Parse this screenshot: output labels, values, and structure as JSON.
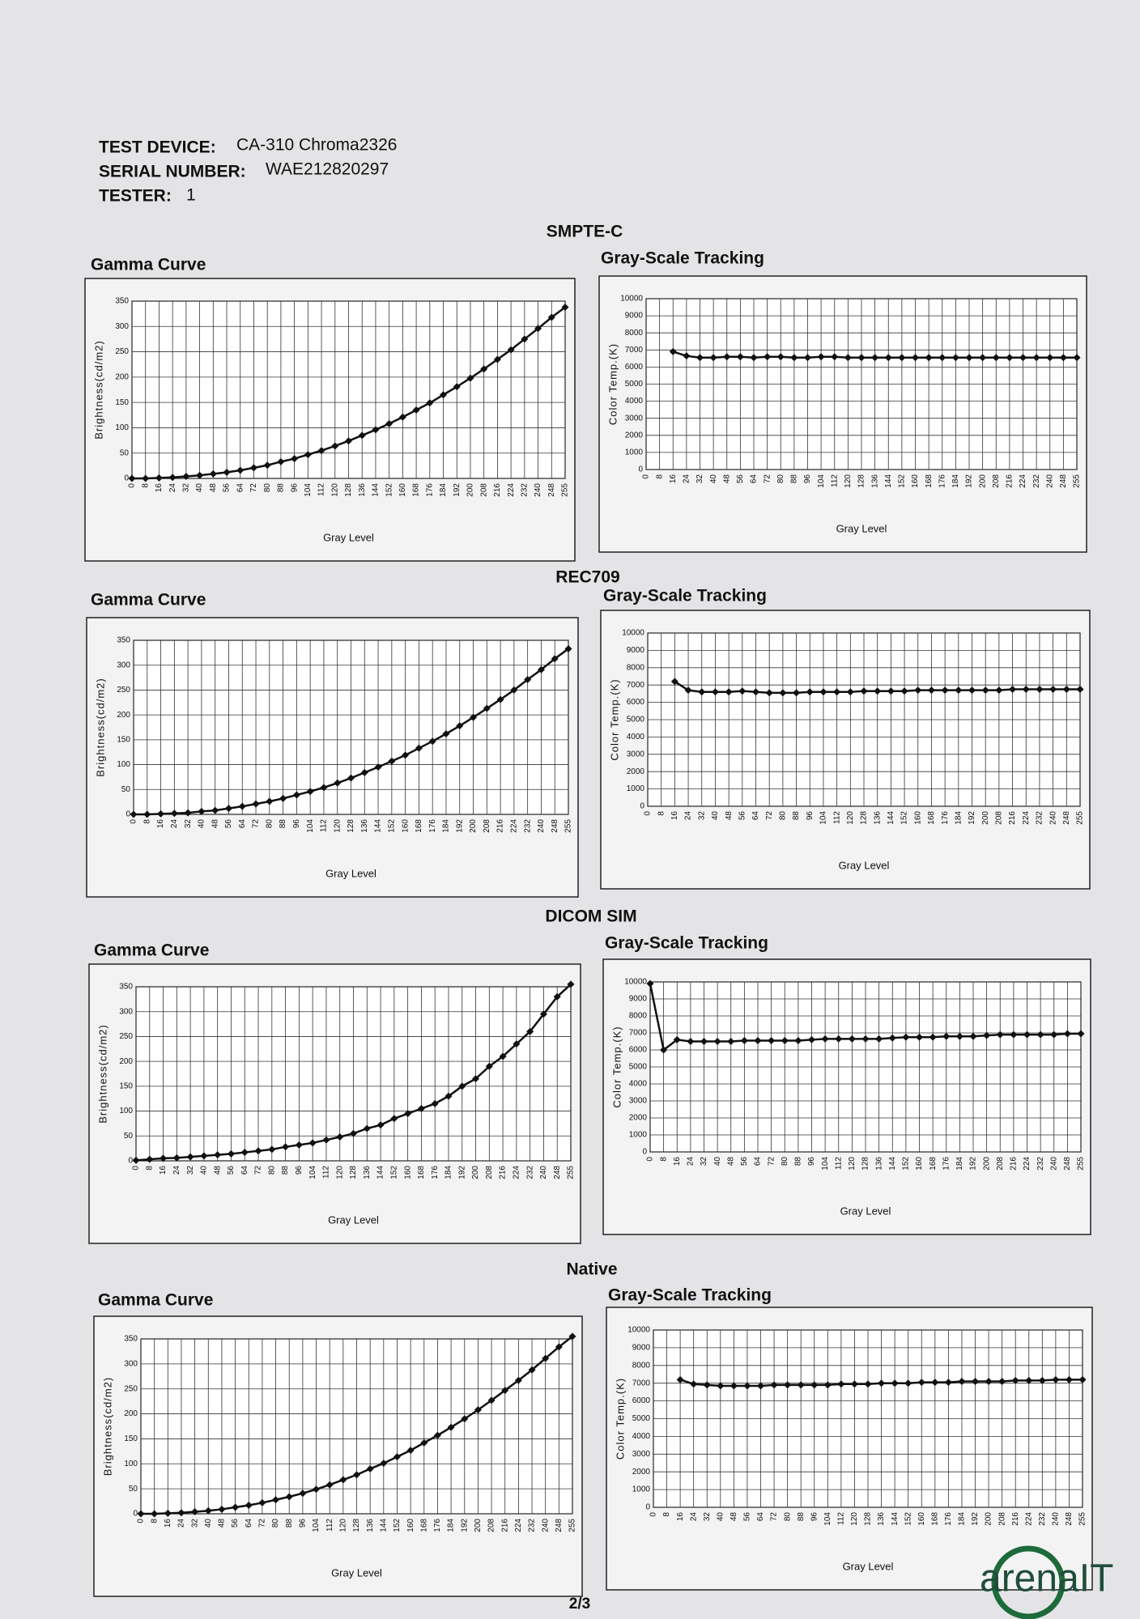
{
  "header": {
    "rows": [
      {
        "label": "TEST DEVICE:",
        "value": "CA-310  Chroma2326"
      },
      {
        "label": "SERIAL NUMBER:",
        "value": "WAE212820297"
      },
      {
        "label": "TESTER:",
        "value": "1"
      }
    ]
  },
  "sections": [
    "SMPTE-C",
    "REC709",
    "DICOM SIM",
    "Native"
  ],
  "chart_data": [
    {
      "type": "line",
      "title": "Gamma Curve",
      "ylabel": "Brightness(cd/m2)",
      "xlabel": "Gray Level",
      "categories": [
        0,
        8,
        16,
        24,
        32,
        40,
        48,
        56,
        64,
        72,
        80,
        88,
        96,
        104,
        112,
        120,
        128,
        136,
        144,
        152,
        160,
        168,
        176,
        184,
        192,
        200,
        208,
        216,
        224,
        232,
        240,
        248,
        255
      ],
      "values": [
        0,
        0,
        1,
        2,
        4,
        6,
        9,
        12,
        16,
        21,
        26,
        33,
        39,
        47,
        55,
        64,
        74,
        85,
        96,
        108,
        121,
        135,
        149,
        165,
        181,
        198,
        216,
        235,
        254,
        275,
        296,
        318,
        338
      ],
      "color": "#111111",
      "ylim": [
        0,
        350
      ],
      "yticks": [
        0,
        50,
        100,
        150,
        200,
        250,
        300,
        350
      ],
      "grid": true
    },
    {
      "type": "line",
      "title": "Gray-Scale Tracking",
      "ylabel": "Color Temp.(K)",
      "xlabel": "Gray Level",
      "categories": [
        0,
        8,
        16,
        24,
        32,
        40,
        48,
        56,
        64,
        72,
        80,
        88,
        96,
        104,
        112,
        120,
        128,
        136,
        144,
        152,
        160,
        168,
        176,
        184,
        192,
        200,
        208,
        216,
        224,
        232,
        240,
        248,
        255
      ],
      "values": [
        null,
        null,
        6900,
        6650,
        6550,
        6550,
        6600,
        6600,
        6550,
        6600,
        6600,
        6550,
        6550,
        6600,
        6600,
        6550,
        6550,
        6550,
        6550,
        6550,
        6550,
        6550,
        6550,
        6550,
        6550,
        6550,
        6550,
        6550,
        6550,
        6550,
        6550,
        6550,
        6550
      ],
      "color": "#111111",
      "ylim": [
        0,
        10000
      ],
      "yticks": [
        0,
        1000,
        2000,
        3000,
        4000,
        5000,
        6000,
        7000,
        8000,
        9000,
        10000
      ],
      "grid": true
    },
    {
      "type": "line",
      "title": "Gamma Curve",
      "ylabel": "Brightness(cd/m2)",
      "xlabel": "Gray Level",
      "categories": [
        0,
        8,
        16,
        24,
        32,
        40,
        48,
        56,
        64,
        72,
        80,
        88,
        96,
        104,
        112,
        120,
        128,
        136,
        144,
        152,
        160,
        168,
        176,
        184,
        192,
        200,
        208,
        216,
        224,
        232,
        240,
        248,
        255
      ],
      "values": [
        0,
        0,
        1,
        2,
        3,
        6,
        8,
        12,
        16,
        21,
        26,
        32,
        39,
        46,
        54,
        63,
        73,
        84,
        95,
        107,
        119,
        133,
        147,
        162,
        178,
        195,
        213,
        231,
        250,
        271,
        291,
        313,
        333
      ],
      "color": "#111111",
      "ylim": [
        0,
        350
      ],
      "yticks": [
        0,
        50,
        100,
        150,
        200,
        250,
        300,
        350
      ],
      "grid": true
    },
    {
      "type": "line",
      "title": "Gray-Scale Tracking",
      "ylabel": "Color Temp.(K)",
      "xlabel": "Gray Level",
      "categories": [
        0,
        8,
        16,
        24,
        32,
        40,
        48,
        56,
        64,
        72,
        80,
        88,
        96,
        104,
        112,
        120,
        128,
        136,
        144,
        152,
        160,
        168,
        176,
        184,
        192,
        200,
        208,
        216,
        224,
        232,
        240,
        248,
        255
      ],
      "values": [
        null,
        null,
        7200,
        6700,
        6600,
        6600,
        6600,
        6650,
        6600,
        6550,
        6550,
        6550,
        6600,
        6600,
        6600,
        6600,
        6650,
        6650,
        6650,
        6650,
        6700,
        6700,
        6700,
        6700,
        6700,
        6700,
        6700,
        6750,
        6750,
        6750,
        6750,
        6750,
        6750
      ],
      "color": "#111111",
      "ylim": [
        0,
        10000
      ],
      "yticks": [
        0,
        1000,
        2000,
        3000,
        4000,
        5000,
        6000,
        7000,
        8000,
        9000,
        10000
      ],
      "grid": true
    },
    {
      "type": "line",
      "title": "Gamma Curve",
      "ylabel": "Brightness(cd/m2)",
      "xlabel": "Gray Level",
      "categories": [
        0,
        8,
        16,
        24,
        32,
        40,
        48,
        56,
        64,
        72,
        80,
        88,
        96,
        104,
        112,
        120,
        128,
        136,
        144,
        152,
        160,
        168,
        176,
        184,
        192,
        200,
        208,
        216,
        224,
        232,
        240,
        248,
        255
      ],
      "values": [
        1,
        3,
        5,
        6,
        8,
        10,
        12,
        14,
        17,
        20,
        23,
        28,
        32,
        36,
        42,
        48,
        55,
        65,
        72,
        85,
        95,
        105,
        115,
        130,
        150,
        165,
        190,
        210,
        235,
        260,
        295,
        330,
        355
      ],
      "color": "#111111",
      "ylim": [
        0,
        350
      ],
      "yticks": [
        0,
        50,
        100,
        150,
        200,
        250,
        300,
        350
      ],
      "grid": true
    },
    {
      "type": "line",
      "title": "Gray-Scale Tracking",
      "ylabel": "Color Temp.(K)",
      "xlabel": "Gray Level",
      "categories": [
        0,
        8,
        16,
        24,
        32,
        40,
        48,
        56,
        64,
        72,
        80,
        88,
        96,
        104,
        112,
        120,
        128,
        136,
        144,
        152,
        160,
        168,
        176,
        184,
        192,
        200,
        208,
        216,
        224,
        232,
        240,
        248,
        255
      ],
      "values": [
        9900,
        6000,
        6600,
        6500,
        6500,
        6500,
        6500,
        6550,
        6550,
        6550,
        6550,
        6550,
        6600,
        6650,
        6650,
        6650,
        6650,
        6650,
        6700,
        6750,
        6750,
        6750,
        6800,
        6800,
        6800,
        6850,
        6900,
        6900,
        6900,
        6900,
        6900,
        6950,
        6950
      ],
      "color": "#111111",
      "ylim": [
        0,
        10000
      ],
      "yticks": [
        0,
        1000,
        2000,
        3000,
        4000,
        5000,
        6000,
        7000,
        8000,
        9000,
        10000
      ],
      "grid": true
    },
    {
      "type": "line",
      "title": "Gamma Curve",
      "ylabel": "Brightness(cd/m2)",
      "xlabel": "Gray Level",
      "categories": [
        0,
        8,
        16,
        24,
        32,
        40,
        48,
        56,
        64,
        72,
        80,
        88,
        96,
        104,
        112,
        120,
        128,
        136,
        144,
        152,
        160,
        168,
        176,
        184,
        192,
        200,
        208,
        216,
        224,
        232,
        240,
        248,
        255
      ],
      "values": [
        0,
        0,
        1,
        2,
        4,
        6,
        9,
        13,
        17,
        22,
        28,
        34,
        41,
        49,
        58,
        68,
        78,
        90,
        101,
        114,
        127,
        142,
        157,
        173,
        190,
        208,
        227,
        247,
        267,
        288,
        311,
        334,
        355
      ],
      "color": "#111111",
      "ylim": [
        0,
        350
      ],
      "yticks": [
        0,
        50,
        100,
        150,
        200,
        250,
        300,
        350
      ],
      "grid": true
    },
    {
      "type": "line",
      "title": "Gray-Scale Tracking",
      "ylabel": "Color Temp.(K)",
      "xlabel": "Gray Level",
      "categories": [
        0,
        8,
        16,
        24,
        32,
        40,
        48,
        56,
        64,
        72,
        80,
        88,
        96,
        104,
        112,
        120,
        128,
        136,
        144,
        152,
        160,
        168,
        176,
        184,
        192,
        200,
        208,
        216,
        224,
        232,
        240,
        248,
        255
      ],
      "values": [
        null,
        null,
        7200,
        6950,
        6900,
        6850,
        6850,
        6850,
        6850,
        6900,
        6900,
        6900,
        6900,
        6900,
        6950,
        6950,
        6950,
        7000,
        7000,
        7000,
        7050,
        7050,
        7050,
        7100,
        7100,
        7100,
        7100,
        7150,
        7150,
        7150,
        7200,
        7200,
        7200
      ],
      "color": "#111111",
      "ylim": [
        0,
        10000
      ],
      "yticks": [
        0,
        1000,
        2000,
        3000,
        4000,
        5000,
        6000,
        7000,
        8000,
        9000,
        10000
      ],
      "grid": true
    }
  ],
  "page_number": "2/3",
  "logo": "arenaIT"
}
